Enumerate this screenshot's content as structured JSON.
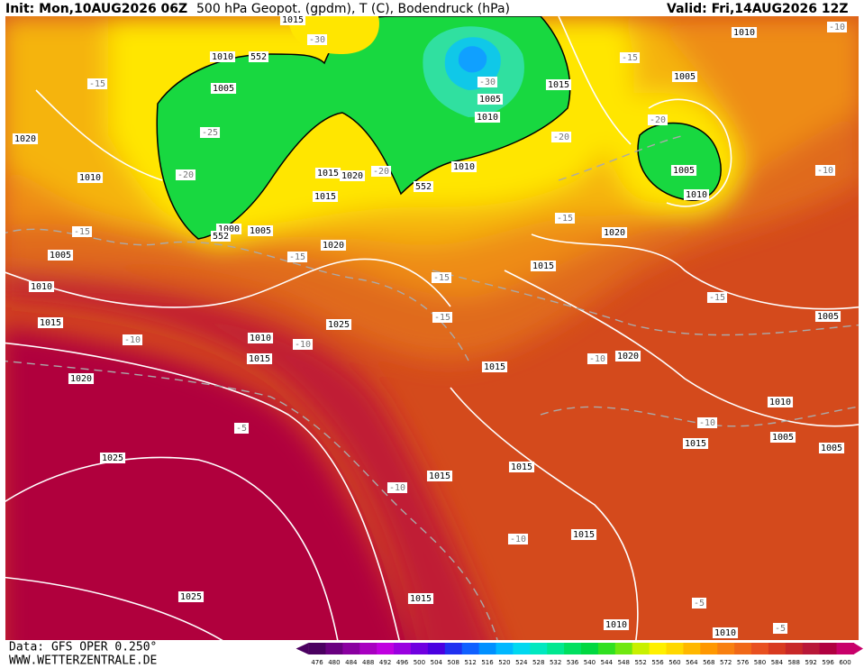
{
  "header": {
    "init": "Init: Mon,10AUG2026 06Z",
    "title": "500 hPa Geopot. (gpdm), T (C), Bodendruck (hPa)",
    "valid": "Valid: Fri,14AUG2026 12Z"
  },
  "footer": {
    "data_source": "Data: GFS OPER 0.250°",
    "site": "WWW.WETTERZENTRALE.DE"
  },
  "pressure_labels": [
    "1015",
    "1010",
    "1010",
    "552",
    "1005",
    "1015",
    "1005",
    "1010",
    "1020",
    "1010",
    "1015",
    "1020",
    "1010",
    "1005",
    "1010",
    "1015",
    "552",
    "1000",
    "552",
    "1005",
    "1005",
    "1020",
    "1020",
    "1015",
    "1010",
    "1015",
    "1005",
    "1025",
    "1010",
    "1015",
    "1020",
    "1015",
    "1020",
    "1010",
    "1015",
    "1005",
    "1005",
    "1025",
    "1015",
    "1015",
    "1015",
    "1015",
    "1025",
    "1010",
    "1010",
    "1005"
  ],
  "temperature_labels": [
    "-30",
    "-10",
    "-15",
    "-15",
    "-30",
    "-20",
    "-25",
    "-20",
    "-20",
    "-20",
    "-10",
    "-15",
    "-15",
    "-15",
    "-15",
    "-15",
    "-15",
    "-10",
    "-10",
    "-10",
    "-10",
    "-5",
    "-10",
    "-10",
    "-5",
    "-5"
  ],
  "legend": {
    "values": [
      476,
      480,
      484,
      488,
      492,
      496,
      500,
      504,
      508,
      512,
      516,
      520,
      524,
      528,
      532,
      536,
      540,
      544,
      548,
      552,
      556,
      560,
      564,
      568,
      572,
      576,
      580,
      584,
      588,
      592,
      596,
      600
    ],
    "colors": [
      "#4b0060",
      "#6a0080",
      "#8a00a0",
      "#a800c0",
      "#c000e0",
      "#9a00e0",
      "#7000e0",
      "#4a00e0",
      "#2030f0",
      "#1060ff",
      "#0090ff",
      "#00b8ff",
      "#00d8f0",
      "#00e8c0",
      "#00e890",
      "#00e060",
      "#00d840",
      "#30e020",
      "#70e810",
      "#c8f000",
      "#fff000",
      "#ffd800",
      "#ffb800",
      "#ff9800",
      "#f88010",
      "#f06818",
      "#e85020",
      "#d83a20",
      "#c82828",
      "#b81838",
      "#b00040",
      "#c8006a"
    ]
  }
}
